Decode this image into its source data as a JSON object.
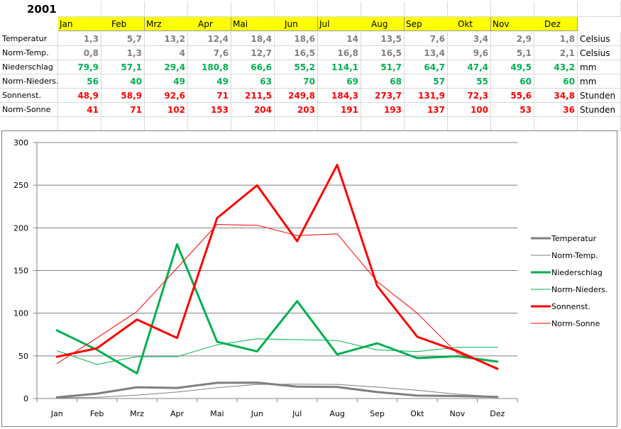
{
  "sheet": {
    "year": "2001",
    "months_top": [
      "Jan",
      "Feb",
      "Mrz",
      "Apr",
      "Mai",
      "Jun",
      "Jul",
      "Aug",
      "Sep",
      "Okt",
      "Nov",
      "Dez"
    ],
    "rows": [
      {
        "label": "Temperatur",
        "color": "#808080",
        "unit": "Celsius",
        "values": [
          "1,3",
          "5,7",
          "13,2",
          "12,4",
          "18,4",
          "18,6",
          "14",
          "13,5",
          "7,6",
          "3,4",
          "2,9",
          "1,8"
        ]
      },
      {
        "label": "Norm-Temp.",
        "color": "#808080",
        "unit": "Celsius",
        "values": [
          "0,8",
          "1,3",
          "4",
          "7,6",
          "12,7",
          "16,5",
          "16,8",
          "16,5",
          "13,4",
          "9,6",
          "5,1",
          "2,1"
        ]
      },
      {
        "label": "Niederschlag",
        "color": "#00b050",
        "unit": "mm",
        "values": [
          "79,9",
          "57,1",
          "29,4",
          "180,8",
          "66,6",
          "55,2",
          "114,1",
          "51,7",
          "64,7",
          "47,4",
          "49,5",
          "43,2"
        ]
      },
      {
        "label": "Norm-Nieders.",
        "color": "#00b050",
        "unit": "mm",
        "values": [
          "56",
          "40",
          "49",
          "49",
          "63",
          "70",
          "69",
          "68",
          "57",
          "55",
          "60",
          "60"
        ]
      },
      {
        "label": "Sonnenst.",
        "color": "#ff0000",
        "unit": "Stunden",
        "values": [
          "48,9",
          "58,9",
          "92,6",
          "71",
          "211,5",
          "249,8",
          "184,3",
          "273,7",
          "131,9",
          "72,3",
          "55,6",
          "34,8"
        ]
      },
      {
        "label": "Norm-Sonne",
        "color": "#ff0000",
        "unit": "Stunden",
        "values": [
          "41",
          "71",
          "102",
          "153",
          "204",
          "203",
          "191",
          "193",
          "137",
          "100",
          "53",
          "36"
        ]
      }
    ]
  },
  "chart_data": {
    "type": "line",
    "categories": [
      "Jan",
      "Feb",
      "Mrz",
      "Apr",
      "Mai",
      "Jun",
      "Jul",
      "Aug",
      "Sep",
      "Okt",
      "Nov",
      "Dez"
    ],
    "ylim": [
      0,
      300
    ],
    "yticks": [
      0,
      50,
      100,
      150,
      200,
      250,
      300
    ],
    "grid": true,
    "legend_position": "right",
    "series": [
      {
        "name": "Temperatur",
        "color": "#7f7f7f",
        "weight": "thick",
        "values": [
          1.3,
          5.7,
          13.2,
          12.4,
          18.4,
          18.6,
          14,
          13.5,
          7.6,
          3.4,
          2.9,
          1.8
        ]
      },
      {
        "name": "Norm-Temp.",
        "color": "#7f7f7f",
        "weight": "thin",
        "values": [
          0.8,
          1.3,
          4,
          7.6,
          12.7,
          16.5,
          16.8,
          16.5,
          13.4,
          9.6,
          5.1,
          2.1
        ]
      },
      {
        "name": "Niederschlag",
        "color": "#00b050",
        "weight": "thick",
        "values": [
          79.9,
          57.1,
          29.4,
          180.8,
          66.6,
          55.2,
          114.1,
          51.7,
          64.7,
          47.4,
          49.5,
          43.2
        ]
      },
      {
        "name": "Norm-Nieders.",
        "color": "#00b050",
        "weight": "thin",
        "values": [
          56,
          40,
          49,
          49,
          63,
          70,
          69,
          68,
          57,
          55,
          60,
          60
        ]
      },
      {
        "name": "Sonnenst.",
        "color": "#ff0000",
        "weight": "thick",
        "values": [
          48.9,
          58.9,
          92.6,
          71,
          211.5,
          249.8,
          184.3,
          273.7,
          131.9,
          72.3,
          55.6,
          34.8
        ]
      },
      {
        "name": "Norm-Sonne",
        "color": "#ff0000",
        "weight": "thin",
        "values": [
          41,
          71,
          102,
          153,
          204,
          203,
          191,
          193,
          137,
          100,
          53,
          36
        ]
      }
    ]
  }
}
